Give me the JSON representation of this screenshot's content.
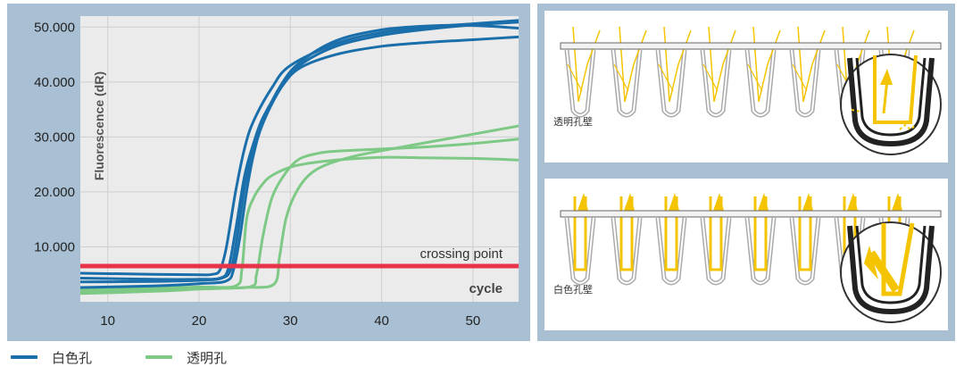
{
  "chart_data": {
    "type": "line",
    "ylabel": "Fluorescence (dR)",
    "xlabel": "cycle",
    "x_ticks": [
      10,
      20,
      30,
      40,
      50
    ],
    "y_ticks": [
      "10.000",
      "20.000",
      "30.000",
      "40.000",
      "50.000"
    ],
    "xlim": [
      7,
      55
    ],
    "ylim": [
      0,
      52000
    ],
    "threshold": {
      "label": "crossing point",
      "value": 6500,
      "color": "#e8344a"
    },
    "grid": true,
    "series": [
      {
        "group": "white",
        "color": "#1a6fab",
        "x": [
          7,
          15,
          20,
          21.5,
          22.3,
          23,
          24,
          25,
          26,
          28,
          30,
          35,
          40,
          45,
          50,
          55
        ],
        "y": [
          5200,
          5000,
          4900,
          5000,
          5800,
          10000,
          20000,
          28000,
          33000,
          39000,
          43000,
          47000,
          49000,
          50000,
          50600,
          51200
        ]
      },
      {
        "group": "white",
        "color": "#1a6fab",
        "x": [
          7,
          15,
          20,
          22.3,
          23.2,
          24,
          25,
          26,
          27,
          29,
          31,
          35,
          40,
          45,
          50,
          55
        ],
        "y": [
          4300,
          4100,
          4100,
          4300,
          6000,
          13000,
          23000,
          29000,
          33500,
          39000,
          42500,
          45000,
          46500,
          47200,
          47700,
          48200
        ]
      },
      {
        "group": "white",
        "color": "#1a6fab",
        "x": [
          7,
          15,
          20,
          22.5,
          23.5,
          24.2,
          25,
          26,
          27,
          29,
          31,
          35,
          40,
          45,
          50,
          55
        ],
        "y": [
          3600,
          3700,
          3900,
          4300,
          6000,
          12000,
          21000,
          28000,
          33000,
          39500,
          43500,
          47500,
          49500,
          50200,
          50300,
          49800
        ]
      },
      {
        "group": "white",
        "color": "#1a6fab",
        "x": [
          7,
          15,
          20,
          23,
          23.8,
          24.5,
          25.2,
          26,
          27,
          29,
          31,
          35,
          40,
          45,
          50,
          55
        ],
        "y": [
          2600,
          2900,
          3300,
          3800,
          6000,
          12000,
          20000,
          27000,
          32500,
          39000,
          43000,
          46500,
          48500,
          49600,
          50400,
          50900
        ]
      },
      {
        "group": "clear",
        "color": "#7dc985",
        "x": [
          7,
          15,
          20,
          24,
          24.7,
          25.2,
          26,
          27,
          28,
          30,
          32,
          35,
          40,
          45,
          50,
          55
        ],
        "y": [
          2200,
          2500,
          2700,
          2900,
          6000,
          15000,
          19000,
          21500,
          23000,
          24500,
          25200,
          25800,
          26300,
          26200,
          26100,
          25800
        ]
      },
      {
        "group": "clear",
        "color": "#7dc985",
        "x": [
          7,
          15,
          20,
          25.5,
          26.3,
          27,
          28,
          29.5,
          31,
          33,
          35,
          40,
          45,
          50,
          55
        ],
        "y": [
          1800,
          2200,
          2500,
          2700,
          5000,
          12000,
          19000,
          23500,
          26000,
          27000,
          27400,
          27800,
          28200,
          28800,
          29600
        ]
      },
      {
        "group": "clear",
        "color": "#7dc985",
        "x": [
          7,
          15,
          20,
          25,
          28.2,
          28.8,
          29.5,
          30.5,
          32,
          34,
          37,
          40,
          45,
          50,
          55
        ],
        "y": [
          1500,
          1900,
          2300,
          2600,
          3200,
          8000,
          15000,
          19500,
          23000,
          25000,
          26500,
          27500,
          29000,
          30500,
          32000
        ]
      }
    ]
  },
  "legend": {
    "white_label": "白色孔",
    "clear_label": "透明孔",
    "white_color": "#1a6fab",
    "clear_color": "#7dc985"
  },
  "diagrams": {
    "top_caption": "透明孔壁",
    "bottom_caption": "白色孔壁",
    "beam_color": "#f5c400"
  }
}
